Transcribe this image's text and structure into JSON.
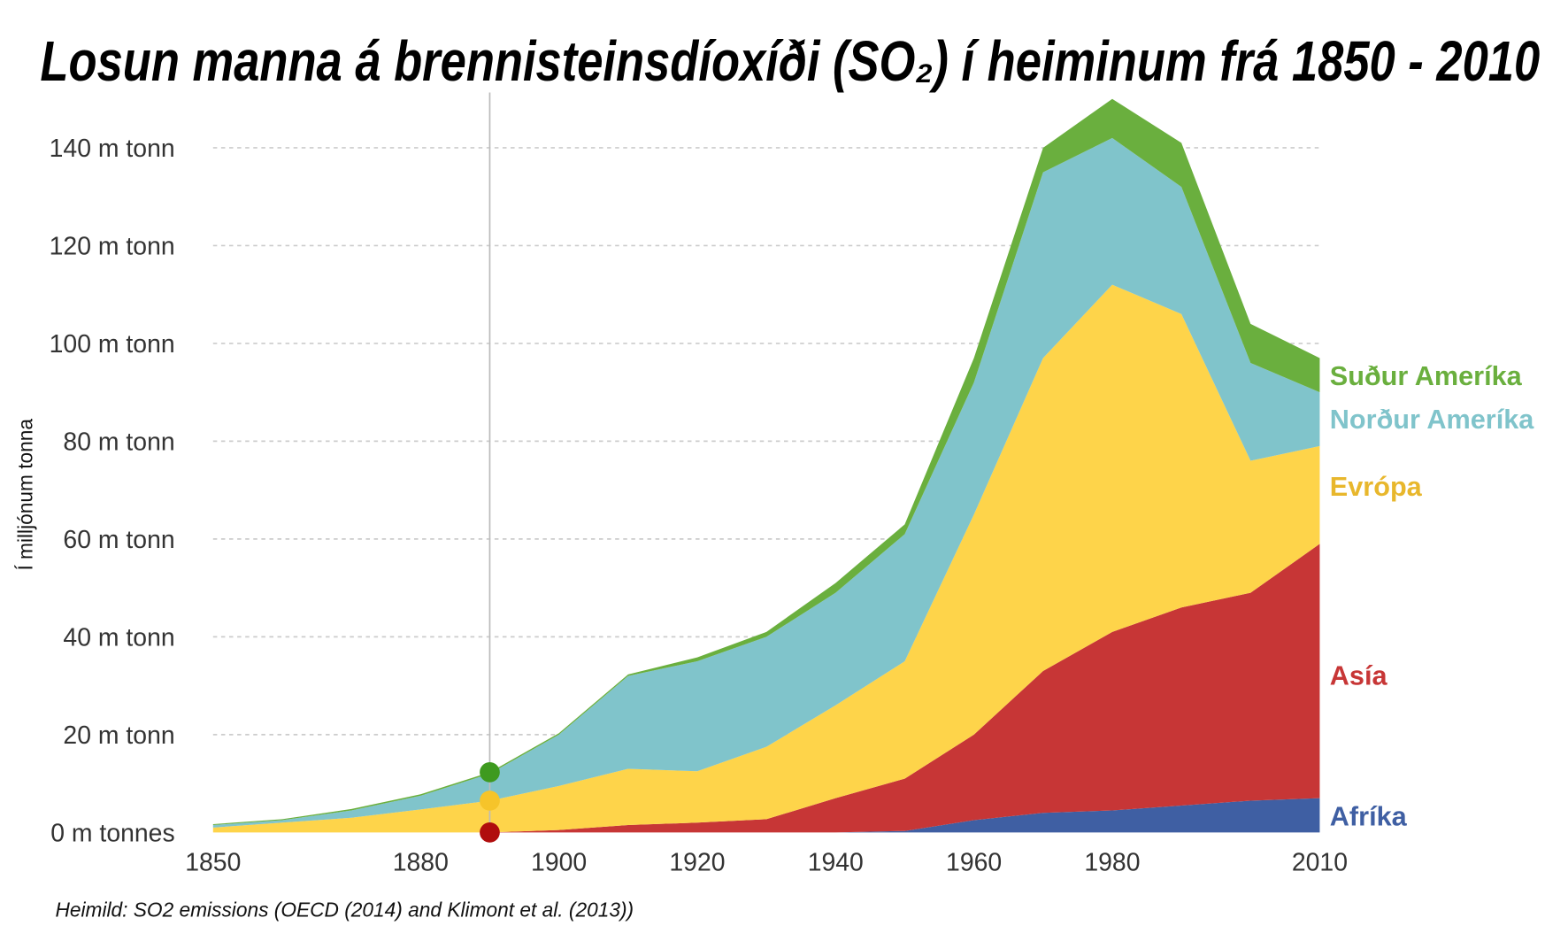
{
  "chart_data": {
    "type": "area",
    "stacked": true,
    "title": "Losun manna á brennisteinsdíoxíði (SO₂) í heiminum frá 1850 - 2010",
    "ylabel": "Í milljónum tonna",
    "source": "Heimild: SO2 emissions (OECD (2014) and Klimont et al. (2013))",
    "xlim": [
      1850,
      2010
    ],
    "ylim": [
      0,
      150
    ],
    "x": [
      1850,
      1860,
      1870,
      1880,
      1890,
      1900,
      1910,
      1920,
      1930,
      1940,
      1950,
      1960,
      1970,
      1980,
      1990,
      2000,
      2010
    ],
    "x_ticks": [
      1850,
      1880,
      1900,
      1920,
      1940,
      1960,
      1980,
      2010
    ],
    "x_tick_labels": [
      "1850",
      "1880",
      "1900",
      "1920",
      "1940",
      "1960",
      "1980",
      "2010"
    ],
    "y_ticks": [
      0,
      20,
      40,
      60,
      80,
      100,
      120,
      140
    ],
    "y_tick_labels": [
      "0 m tonnes",
      "20 m tonn",
      "40 m tonn",
      "60 m tonn",
      "80 m tonn",
      "100 m tonn",
      "120 m tonn",
      "140 m tonn"
    ],
    "grid": true,
    "legend": "right, inline labels",
    "highlight_year": 1890,
    "series": [
      {
        "name": "Afríka",
        "color": "#3f5fa3",
        "values": [
          0,
          0,
          0,
          0,
          0,
          0,
          0,
          0,
          0,
          0,
          0.3,
          2.5,
          4,
          4.5,
          5.5,
          6.5,
          7
        ]
      },
      {
        "name": "Asía",
        "color": "#c73636",
        "values": [
          0,
          0,
          0,
          0,
          0,
          0.5,
          1.5,
          2,
          2.7,
          7,
          10.7,
          17.5,
          29,
          36.5,
          40.5,
          42.5,
          52
        ]
      },
      {
        "name": "Evrópa",
        "color": "#fed44a",
        "label_color": "#e8b72c",
        "values": [
          1,
          2,
          3,
          4.7,
          6.5,
          9,
          11.5,
          10.5,
          14.8,
          19,
          24,
          45,
          64,
          71,
          60,
          27,
          20
        ]
      },
      {
        "name": "Norður Ameríka",
        "color": "#80c4cb",
        "values": [
          0.5,
          0.5,
          1.5,
          2.8,
          5.5,
          10.5,
          19,
          22.5,
          22.5,
          23,
          26,
          27,
          38,
          30,
          26,
          20,
          11
        ]
      },
      {
        "name": "Suður Ameríka",
        "color": "#6aaf3e",
        "values": [
          0.2,
          0.2,
          0.3,
          0.3,
          0.3,
          0.3,
          0.3,
          0.8,
          1,
          2,
          2,
          5,
          5,
          8,
          9,
          8,
          7
        ]
      }
    ]
  }
}
